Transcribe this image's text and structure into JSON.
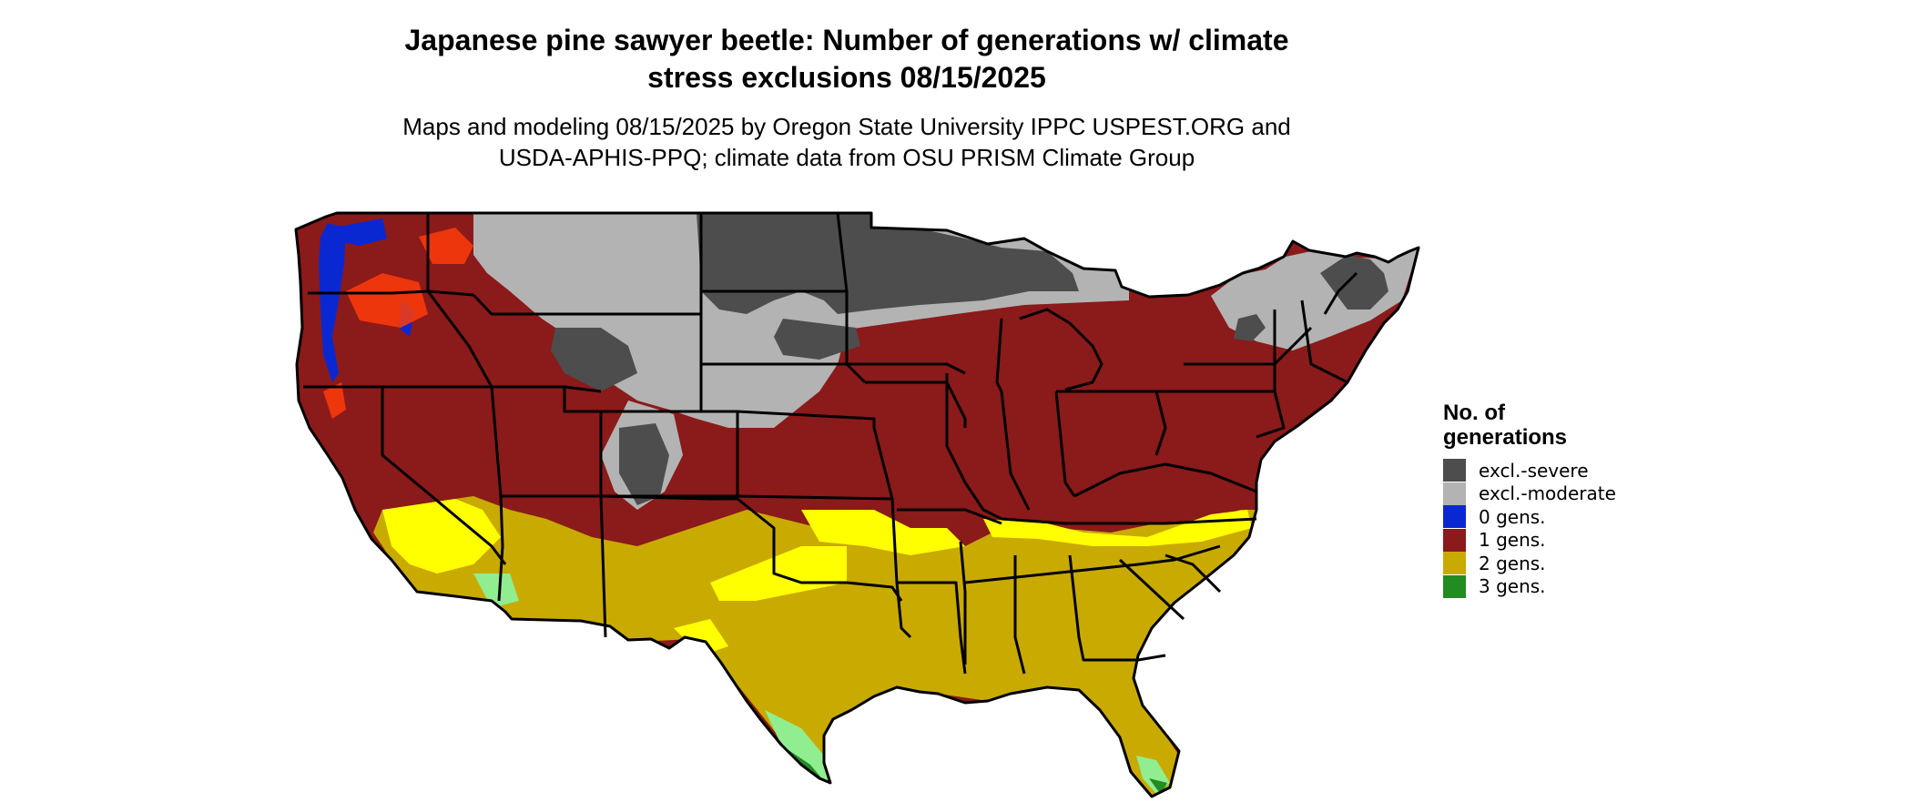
{
  "title": {
    "line1": "Japanese pine sawyer beetle: Number of generations w/ climate",
    "line2": "stress exclusions 08/15/2025"
  },
  "subtitle": {
    "line1": "Maps and modeling 08/15/2025 by Oregon State University IPPC USPEST.ORG and",
    "line2": "USDA-APHIS-PPQ; climate data from OSU PRISM Climate Group"
  },
  "legend": {
    "title_line1": "No. of",
    "title_line2": "generations",
    "items": [
      {
        "label": "excl.-severe",
        "color": "#4d4d4d"
      },
      {
        "label": "excl.-moderate",
        "color": "#b3b3b3"
      },
      {
        "label": "0 gens.",
        "color": "#0a28d2"
      },
      {
        "label": "1 gens.",
        "color": "#8b1a1a"
      },
      {
        "label": "2 gens.",
        "color": "#c9aa00"
      },
      {
        "label": "3 gens.",
        "color": "#228b22"
      }
    ]
  },
  "map": {
    "region": "Contiguous United States",
    "colors": {
      "excl_severe": "#4d4d4d",
      "excl_moderate": "#b3b3b3",
      "gens_0": "#0a28d2",
      "gens_1": "#8b1a1a",
      "gens_1_light": "#ff3c0a",
      "gens_2": "#c9aa00",
      "gens_2_light": "#ffff00",
      "gens_3": "#228b22",
      "gens_3_light": "#90ee90",
      "border": "#000000"
    }
  }
}
